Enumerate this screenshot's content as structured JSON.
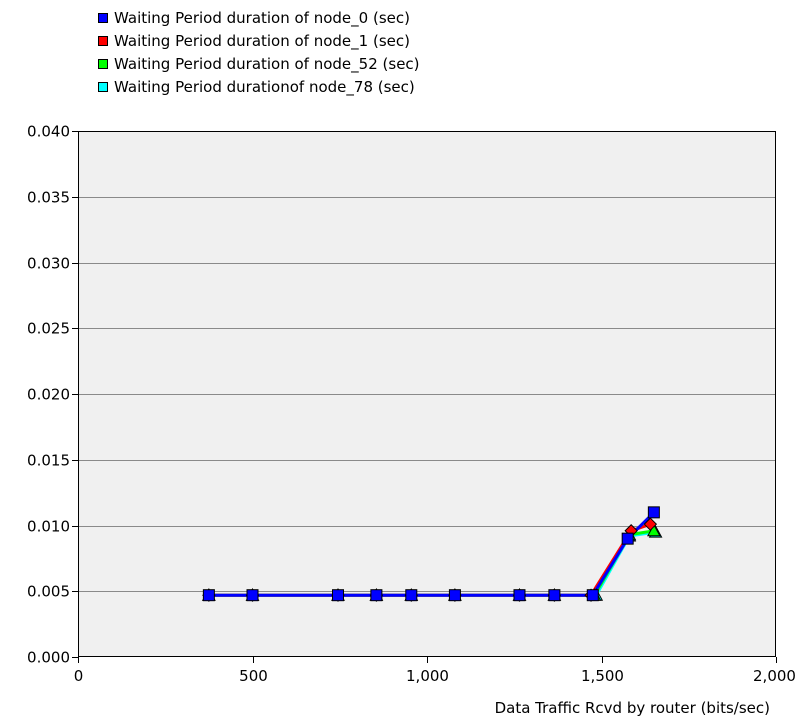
{
  "chart_data": {
    "type": "line",
    "title": "",
    "xlabel": "Data Traffic Rcvd by router (bits/sec)",
    "ylabel": "",
    "xlim": [
      0,
      2000
    ],
    "ylim": [
      0,
      0.04
    ],
    "x_ticks": [
      0,
      500,
      1000,
      1500,
      2000
    ],
    "x_tick_labels": [
      "0",
      "500",
      "1,000",
      "1,500",
      "2,000"
    ],
    "y_ticks": [
      0,
      0.005,
      0.01,
      0.015,
      0.02,
      0.025,
      0.03,
      0.035,
      0.04
    ],
    "y_tick_labels": [
      "0.000",
      "0.005",
      "0.010",
      "0.015",
      "0.020",
      "0.025",
      "0.030",
      "0.035",
      "0.040"
    ],
    "grid": true,
    "legend_position": "top-left",
    "series": [
      {
        "name": "Waiting Period duration of node_0 (sec)",
        "color": "#0000ff",
        "marker": "square",
        "x": [
          375,
          500,
          745,
          855,
          955,
          1080,
          1265,
          1365,
          1475,
          1575,
          1650
        ],
        "y": [
          0.0047,
          0.0047,
          0.0047,
          0.0047,
          0.0047,
          0.0047,
          0.0047,
          0.0047,
          0.0047,
          0.009,
          0.011
        ]
      },
      {
        "name": "Waiting Period duration of node_1 (sec)",
        "color": "#ff0000",
        "marker": "diamond",
        "x": [
          375,
          500,
          745,
          855,
          955,
          1080,
          1265,
          1365,
          1470,
          1585,
          1640
        ],
        "y": [
          0.0047,
          0.0047,
          0.0047,
          0.0047,
          0.0047,
          0.0047,
          0.0047,
          0.0047,
          0.0047,
          0.0096,
          0.0101
        ]
      },
      {
        "name": "Waiting Period duration of node_52 (sec)",
        "color": "#00ff00",
        "marker": "triangle",
        "x": [
          375,
          500,
          745,
          855,
          955,
          1080,
          1265,
          1365,
          1480,
          1580,
          1650
        ],
        "y": [
          0.0047,
          0.0047,
          0.0047,
          0.0047,
          0.0047,
          0.0047,
          0.0047,
          0.0047,
          0.0047,
          0.0093,
          0.0096
        ]
      },
      {
        "name": "Waiting Period durationof node_78 (sec)",
        "color": "#00ffff",
        "marker": "triangle",
        "x": [
          375,
          500,
          745,
          855,
          955,
          1080,
          1265,
          1365,
          1485,
          1580,
          1655
        ],
        "y": [
          0.0047,
          0.0047,
          0.0047,
          0.0047,
          0.0047,
          0.0047,
          0.0047,
          0.0047,
          0.0047,
          0.0092,
          0.0095
        ]
      }
    ]
  }
}
